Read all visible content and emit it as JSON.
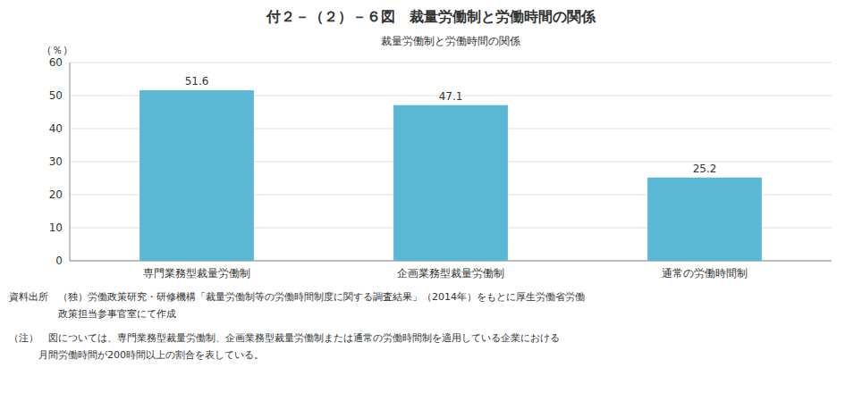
{
  "chart_data": {
    "type": "bar",
    "title": "付２－（２）－６図　裁量労働制と労働時間の関係",
    "subtitle": "裁量労働制と労働時間の関係",
    "y_label": "（％）",
    "categories": [
      "専門業務型裁量労働制",
      "企画業務型裁量労働制",
      "通常の労働時間制"
    ],
    "values": [
      51.6,
      47.1,
      25.2
    ],
    "color": "#5bb8d4",
    "ylim": [
      0,
      60
    ],
    "yticks": [
      0,
      10,
      20,
      30,
      40,
      50,
      60
    ],
    "grid": true,
    "data_labels": true,
    "annotations": [
      "資料出所　（独）労働政策研究・研修機構「裁量労働制等の労働時間制度に関する調査結果」（2014年）をもとに厚生労働省労働",
      "　　　　　政策担当参事官室にて作成",
      "（注）　図については、専門業務型裁量労働制、企画業務型裁量労働制または通常の労働時間制を適用している企業における",
      "　　　月間労働時間が200時間以上の割合を表している。"
    ]
  }
}
